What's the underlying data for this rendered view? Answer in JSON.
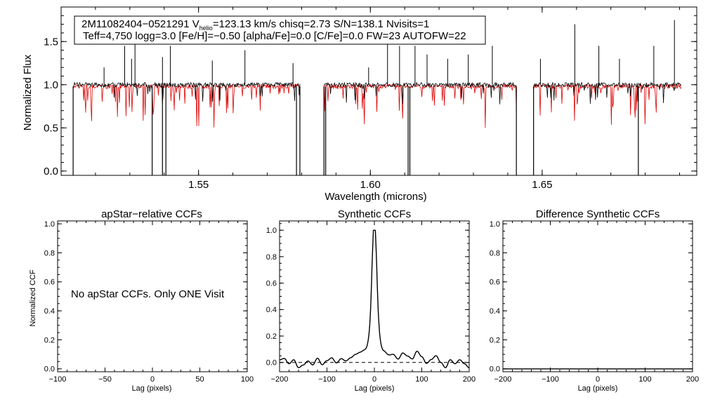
{
  "chart_data": [
    {
      "type": "line",
      "name": "spectrum",
      "info_box": {
        "line1_pre": "2M11082404−0521291  V",
        "line1_sub": "helio",
        "line1_post": "=123.13 km/s  chisq=2.73  S/N=138.1  Nvisits=1",
        "line2": "Teff=4,750 logg=3.0 [Fe/H]=−0.50 [alpha/Fe]=0.0 [C/Fe]=0.0 FW=23 AUTOFW=22"
      },
      "xlabel": "Wavelength (microns)",
      "ylabel": "Normalized Flux",
      "xlim": [
        1.51,
        1.695
      ],
      "ylim": [
        -0.05,
        1.9
      ],
      "xticks": [
        "1.55",
        "1.60",
        "1.65"
      ],
      "yticks": [
        "0.0",
        "0.5",
        "1.0",
        "1.5"
      ],
      "segments": [
        [
          1.5135,
          1.5795
        ],
        [
          1.5865,
          1.6425
        ],
        [
          1.6475,
          1.6905
        ]
      ],
      "series": [
        {
          "color": "#000000",
          "continuum": 1.0
        },
        {
          "color": "#dd0000",
          "continuum": 0.98
        }
      ],
      "emission_spikes": [
        {
          "x": 1.5225,
          "y": 1.2
        },
        {
          "x": 1.5285,
          "y": 1.45
        },
        {
          "x": 1.5305,
          "y": 1.3
        },
        {
          "x": 1.5315,
          "y": 1.78
        },
        {
          "x": 1.5395,
          "y": 1.32
        },
        {
          "x": 1.5418,
          "y": 1.45
        },
        {
          "x": 1.554,
          "y": 1.28
        },
        {
          "x": 1.5635,
          "y": 1.4
        },
        {
          "x": 1.5775,
          "y": 1.25
        },
        {
          "x": 1.5995,
          "y": 1.2
        },
        {
          "x": 1.605,
          "y": 1.7
        },
        {
          "x": 1.6085,
          "y": 1.45
        },
        {
          "x": 1.613,
          "y": 1.45
        },
        {
          "x": 1.6165,
          "y": 1.35
        },
        {
          "x": 1.6225,
          "y": 1.3
        },
        {
          "x": 1.6285,
          "y": 1.35
        },
        {
          "x": 1.6355,
          "y": 1.45
        },
        {
          "x": 1.6495,
          "y": 1.3
        },
        {
          "x": 1.6595,
          "y": 1.7
        },
        {
          "x": 1.6665,
          "y": 1.45
        },
        {
          "x": 1.6725,
          "y": 1.3
        },
        {
          "x": 1.6825,
          "y": 1.45
        },
        {
          "x": 1.6885,
          "y": 1.75
        }
      ],
      "dropouts": [
        1.5135,
        1.5365,
        1.5395,
        1.5405,
        1.5785,
        1.5795,
        1.5865,
        1.587,
        1.611,
        1.6115,
        1.6425,
        1.6475,
        1.678
      ]
    },
    {
      "type": "line",
      "name": "apstar_ccf",
      "title": "apStar−relative CCFs",
      "xlabel": "Lag (pixels)",
      "ylabel": "Normalized CCF",
      "xlim": [
        -100,
        100
      ],
      "ylim": [
        -0.02,
        1.02
      ],
      "xticks": [
        "−100",
        "−50",
        "0",
        "50",
        "100"
      ],
      "yticks": [
        "0.0",
        "0.2",
        "0.4",
        "0.6",
        "0.8",
        "1.0"
      ],
      "message": "No apStar CCFs.  Only ONE Visit"
    },
    {
      "type": "line",
      "name": "synthetic_ccf",
      "title": "Synthetic CCFs",
      "xlabel": "Lag (pixels)",
      "ylabel": "",
      "xlim": [
        -200,
        200
      ],
      "ylim": [
        -0.07,
        1.07
      ],
      "xticks": [
        "−200",
        "−100",
        "0",
        "100",
        "200"
      ],
      "yticks": [
        "0.0",
        "0.2",
        "0.4",
        "0.6",
        "0.8",
        "1.0"
      ],
      "zero_line": 0.0,
      "peak": {
        "x": 0,
        "y": 1.0,
        "width": 5.5
      },
      "wing": {
        "amplitude": 0.11,
        "width": 35
      },
      "noise": [
        [
          -200,
          0.02
        ],
        [
          -190,
          0.03
        ],
        [
          -180,
          -0.01
        ],
        [
          -170,
          0.02
        ],
        [
          -160,
          -0.04
        ],
        [
          -150,
          -0.02
        ],
        [
          -140,
          0.01
        ],
        [
          -130,
          -0.02
        ],
        [
          -120,
          0.03
        ],
        [
          -110,
          -0.02
        ],
        [
          -100,
          0.01
        ],
        [
          -90,
          0.03
        ],
        [
          -80,
          -0.01
        ],
        [
          -70,
          0.02
        ],
        [
          -60,
          0.0
        ],
        [
          -50,
          0.02
        ],
        [
          -40,
          0.04
        ],
        [
          -30,
          0.05
        ],
        [
          -20,
          0.06
        ],
        [
          -10,
          0.08
        ],
        [
          0,
          0.1
        ],
        [
          10,
          0.07
        ],
        [
          20,
          0.05
        ],
        [
          30,
          0.03
        ],
        [
          40,
          0.04
        ],
        [
          50,
          0.01
        ],
        [
          60,
          0.06
        ],
        [
          70,
          0.04
        ],
        [
          80,
          0.02
        ],
        [
          90,
          0.08
        ],
        [
          100,
          0.04
        ],
        [
          110,
          -0.01
        ],
        [
          120,
          0.02
        ],
        [
          130,
          0.05
        ],
        [
          140,
          0.0
        ],
        [
          150,
          -0.04
        ],
        [
          160,
          0.02
        ],
        [
          170,
          -0.01
        ],
        [
          180,
          0.02
        ],
        [
          190,
          -0.01
        ],
        [
          200,
          -0.04
        ]
      ]
    },
    {
      "type": "line",
      "name": "difference_ccf",
      "title": "Difference Synthetic CCFs",
      "xlabel": "Lag (pixels)",
      "ylabel": "",
      "xlim": [
        -200,
        200
      ],
      "ylim": [
        -0.02,
        1.02
      ],
      "xticks": [
        "−200",
        "−100",
        "0",
        "100",
        "200"
      ],
      "yticks": [
        "0.0",
        "0.2",
        "0.4",
        "0.6",
        "0.8",
        "1.0"
      ],
      "values": [
        [
          -200,
          0.0
        ],
        [
          200,
          0.0
        ]
      ]
    }
  ]
}
